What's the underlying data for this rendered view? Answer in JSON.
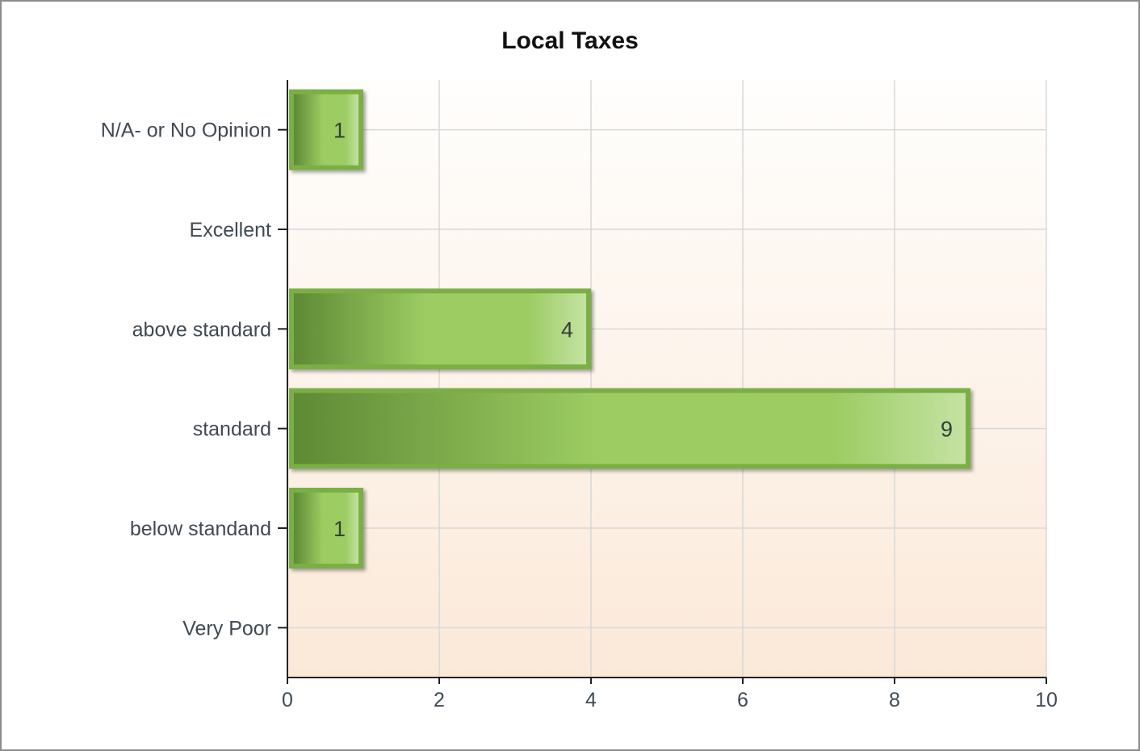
{
  "chart_data": {
    "type": "bar",
    "orientation": "horizontal",
    "title": "Local Taxes",
    "xlabel": "",
    "ylabel": "",
    "categories": [
      "N/A- or No Opinion",
      "Excellent",
      "above standard",
      "standard",
      "below standand",
      "Very Poor"
    ],
    "values": [
      1,
      0,
      4,
      9,
      1,
      0
    ],
    "data_labels": [
      "1",
      "",
      "4",
      "9",
      "1",
      ""
    ],
    "xlim": [
      0,
      10
    ],
    "x_ticks": [
      "0",
      "2",
      "4",
      "6",
      "8",
      "10"
    ],
    "grid": true,
    "legend": "none",
    "colors": {
      "bar_dark": "#5e8a35",
      "bar_mid": "#9ccc62",
      "bar_light": "#c4e2a2",
      "bar_border": "#7aaf45",
      "plot_bg_top": "#fffefd",
      "plot_bg_bottom": "#fbe9d8",
      "grid": "#d8d8d8",
      "axis": "#222222"
    }
  }
}
